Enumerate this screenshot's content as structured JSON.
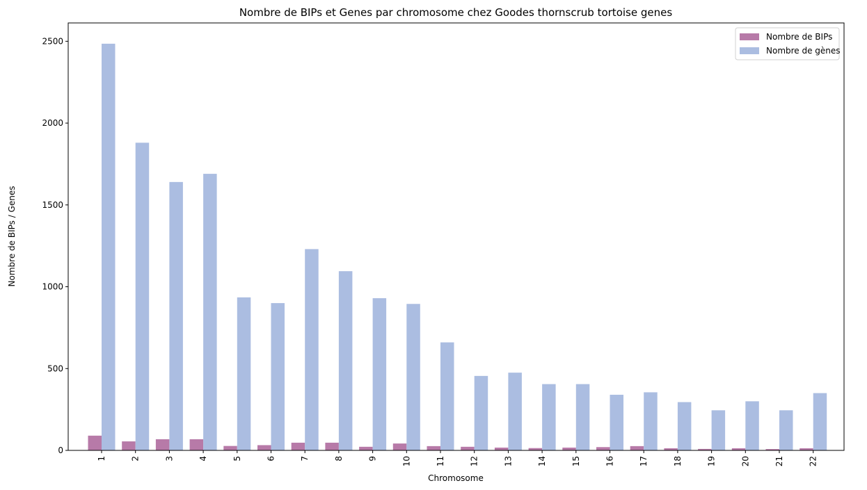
{
  "chart_data": {
    "type": "bar",
    "title": "Nombre de BIPs et Genes par chromosome chez Goodes thornscrub tortoise genes",
    "xlabel": "Chromosome",
    "ylabel": "Nombre de BIPs / Genes",
    "categories": [
      "1",
      "2",
      "3",
      "4",
      "5",
      "6",
      "7",
      "8",
      "9",
      "10",
      "11",
      "12",
      "13",
      "14",
      "15",
      "16",
      "17",
      "18",
      "19",
      "20",
      "21",
      "22"
    ],
    "series": [
      {
        "name": "Nombre de BIPs",
        "color": "#b77aa8",
        "values": [
          90,
          55,
          68,
          68,
          27,
          32,
          47,
          47,
          22,
          42,
          26,
          22,
          17,
          14,
          17,
          20,
          26,
          13,
          9,
          13,
          8,
          13
        ]
      },
      {
        "name": "Nombre de gènes",
        "color": "#abbde1",
        "values": [
          2485,
          1880,
          1640,
          1690,
          935,
          900,
          1230,
          1095,
          930,
          895,
          660,
          455,
          475,
          405,
          405,
          340,
          355,
          295,
          245,
          300,
          245,
          350
        ]
      }
    ],
    "ylim": [
      0,
      2612
    ],
    "yticks": [
      0,
      500,
      1000,
      1500,
      2000,
      2500
    ],
    "legend_position": "top-right",
    "grid": false
  }
}
